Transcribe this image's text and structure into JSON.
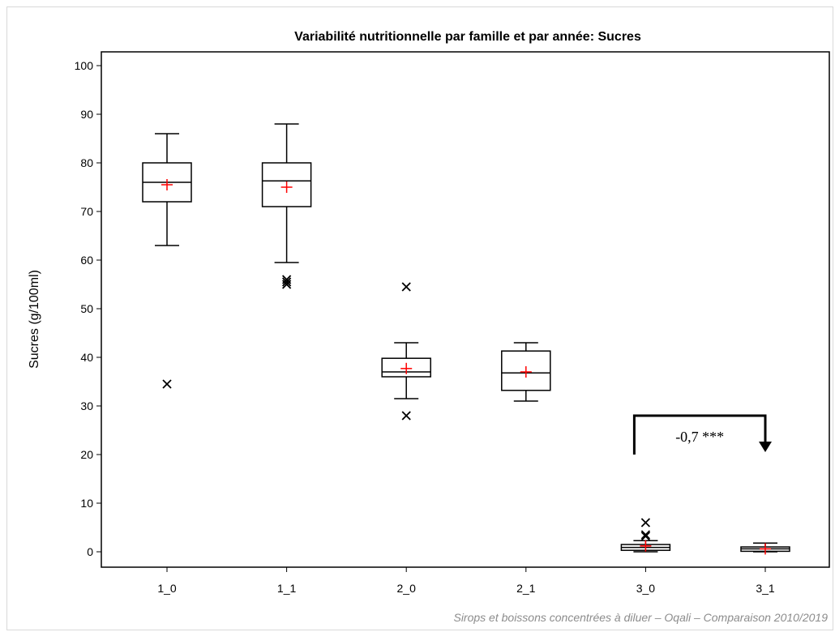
{
  "chart_data": {
    "type": "box",
    "title": "Variabilité nutritionnelle par famille et par année: Sucres",
    "xlabel": "",
    "ylabel": "Sucres (g/100ml)",
    "ylim": [
      -3,
      103
    ],
    "yticks": [
      0,
      10,
      20,
      30,
      40,
      50,
      60,
      70,
      80,
      90,
      100
    ],
    "categories": [
      "1_0",
      "1_1",
      "2_0",
      "2_1",
      "3_0",
      "3_1"
    ],
    "boxes": [
      {
        "category": "1_0",
        "whisker_low": 63,
        "q1": 72,
        "median": 76,
        "q3": 80,
        "whisker_high": 86,
        "mean": 75.5,
        "outliers": [
          34.5
        ]
      },
      {
        "category": "1_1",
        "whisker_low": 59.5,
        "q1": 71,
        "median": 76.3,
        "q3": 80,
        "whisker_high": 88,
        "mean": 75,
        "outliers": [
          55,
          55.5,
          56
        ]
      },
      {
        "category": "2_0",
        "whisker_low": 31.5,
        "q1": 36,
        "median": 37,
        "q3": 39.8,
        "whisker_high": 43,
        "mean": 37.7,
        "outliers": [
          54.5,
          28
        ]
      },
      {
        "category": "2_1",
        "whisker_low": 31,
        "q1": 33.2,
        "median": 36.8,
        "q3": 41.3,
        "whisker_high": 43,
        "mean": 37,
        "outliers": []
      },
      {
        "category": "3_0",
        "whisker_low": 0,
        "q1": 0.3,
        "median": 0.9,
        "q3": 1.5,
        "whisker_high": 2.3,
        "mean": 1.2,
        "outliers": [
          3.2,
          3.5,
          6
        ]
      },
      {
        "category": "3_1",
        "whisker_low": 0,
        "q1": 0.1,
        "median": 0.6,
        "q3": 1,
        "whisker_high": 1.8,
        "mean": 0.6,
        "outliers": []
      }
    ],
    "annotation": {
      "text": "-0,7 ***",
      "from": "3_0",
      "to": "3_1"
    },
    "footnote": "Sirops et boissons concentrées à diluer – Oqali – Comparaison 2010/2019",
    "colors": {
      "box": "#000000",
      "mean": "#ff0000",
      "outlier": "#000000"
    }
  }
}
